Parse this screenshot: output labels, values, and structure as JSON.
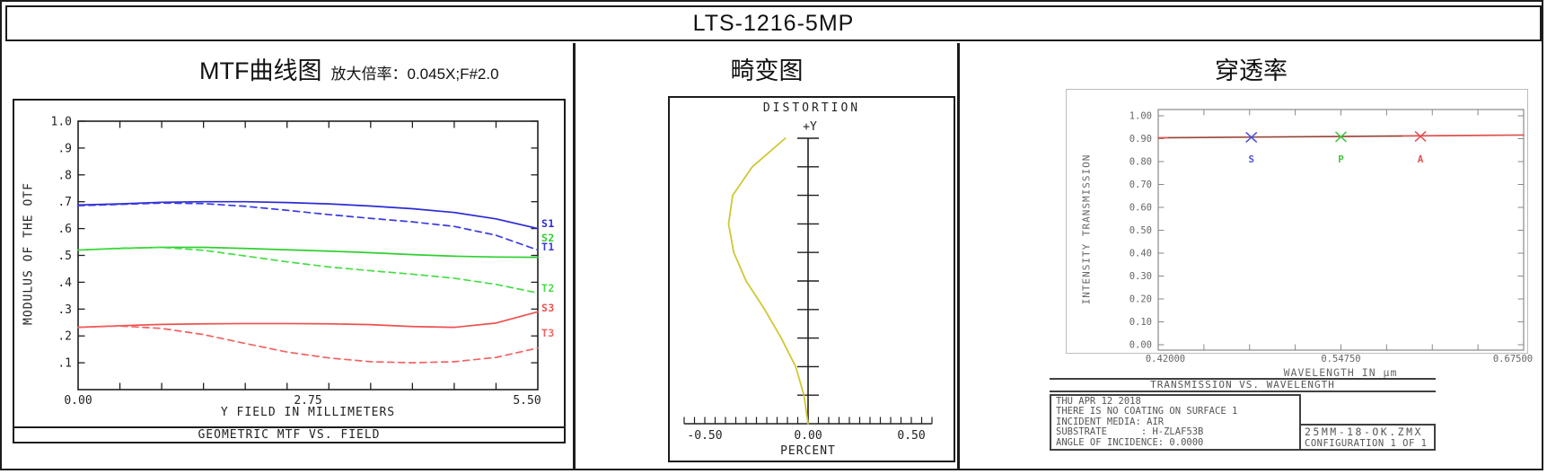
{
  "header": {
    "title": "LTS-1216-5MP"
  },
  "panels": {
    "mtf": {
      "title": "MTF曲线图",
      "subtitle": "放大倍率：0.045X;F#2.0"
    },
    "distortion": {
      "title": "畸变图"
    },
    "transmission": {
      "title": "穿透率",
      "info_lines": [
        "THU APR 12 2018",
        "THERE IS NO COATING ON SURFACE 1",
        "INCIDENT MEDIA: AIR",
        "SUBSTRATE      : H-ZLAF53B",
        "ANGLE OF INCIDENCE: 0.0000"
      ],
      "file_lines": [
        "25MM-18-OK.ZMX",
        "CONFIGURATION 1 OF 1"
      ]
    }
  },
  "chart_data": [
    {
      "type": "line",
      "name": "geometric-mtf",
      "title": "GEOMETRIC MTF VS. FIELD",
      "xlabel": "Y FIELD IN MILLIMETERS",
      "ylabel": "MODULUS OF THE OTF",
      "xlim": [
        0,
        5.5
      ],
      "ylim": [
        0,
        1.0
      ],
      "grid": false,
      "x": [
        0,
        0.5,
        1,
        1.5,
        2,
        2.5,
        3,
        3.5,
        4,
        4.5,
        5,
        5.5
      ],
      "xticks": [
        {
          "label": "0.00",
          "value": 0
        },
        {
          "label": "2.75",
          "value": 2.75
        },
        {
          "label": "5.50",
          "value": 5.5
        }
      ],
      "yticks": [
        {
          "label": "1.0",
          "value": 1.0
        },
        {
          "label": ".9",
          "value": 0.9
        },
        {
          "label": ".8",
          "value": 0.8
        },
        {
          "label": ".7",
          "value": 0.7
        },
        {
          "label": ".6",
          "value": 0.6
        },
        {
          "label": ".5",
          "value": 0.5
        },
        {
          "label": ".4",
          "value": 0.4
        },
        {
          "label": ".3",
          "value": 0.3
        },
        {
          "label": ".2",
          "value": 0.2
        },
        {
          "label": ".1",
          "value": 0.1
        }
      ],
      "series": [
        {
          "name": "S1",
          "color": "#2b2bd6",
          "dashed": false,
          "values": [
            0.688,
            0.692,
            0.698,
            0.7,
            0.7,
            0.697,
            0.692,
            0.684,
            0.674,
            0.66,
            0.636,
            0.6
          ]
        },
        {
          "name": "T1",
          "color": "#3b3be0",
          "dashed": true,
          "values": [
            0.685,
            0.69,
            0.695,
            0.693,
            0.683,
            0.668,
            0.652,
            0.638,
            0.625,
            0.608,
            0.575,
            0.52
          ]
        },
        {
          "name": "S2",
          "color": "#2fcf2f",
          "dashed": false,
          "values": [
            0.52,
            0.526,
            0.53,
            0.53,
            0.526,
            0.521,
            0.516,
            0.51,
            0.503,
            0.497,
            0.494,
            0.493
          ]
        },
        {
          "name": "T2",
          "color": "#43de43",
          "dashed": true,
          "values": [
            0.52,
            0.527,
            0.53,
            0.519,
            0.498,
            0.476,
            0.457,
            0.443,
            0.43,
            0.415,
            0.392,
            0.36
          ]
        },
        {
          "name": "S3",
          "color": "#ee5050",
          "dashed": false,
          "values": [
            0.232,
            0.238,
            0.243,
            0.245,
            0.246,
            0.246,
            0.245,
            0.242,
            0.235,
            0.232,
            0.248,
            0.29
          ]
        },
        {
          "name": "T3",
          "color": "#f26262",
          "dashed": true,
          "values": [
            0.232,
            0.237,
            0.228,
            0.205,
            0.172,
            0.14,
            0.118,
            0.104,
            0.1,
            0.104,
            0.12,
            0.155
          ]
        }
      ]
    },
    {
      "type": "line",
      "name": "distortion",
      "title": "DISTORTION",
      "annotation": "+Y",
      "xlabel": "PERCENT",
      "xlim": [
        -0.6,
        0.6
      ],
      "field_range": [
        0,
        1
      ],
      "color": "#cfc832",
      "xticks": [
        {
          "label": "-0.50",
          "value": -0.5
        },
        {
          "label": "0.00",
          "value": 0
        },
        {
          "label": "0.50",
          "value": 0.5
        }
      ],
      "field": [
        0,
        0.1,
        0.2,
        0.3,
        0.4,
        0.5,
        0.6,
        0.7,
        0.8,
        0.9,
        1.0
      ],
      "percent": [
        0,
        -0.02,
        -0.06,
        -0.13,
        -0.21,
        -0.3,
        -0.36,
        -0.385,
        -0.365,
        -0.27,
        -0.11
      ]
    },
    {
      "type": "line",
      "name": "transmission",
      "title": "TRANSMISSION VS. WAVELENGTH",
      "xlabel": "WAVELENGTH IN µm",
      "ylabel": "INTENSITY TRANSMISSION",
      "xlim": [
        0.42,
        0.675
      ],
      "ylim": [
        0,
        1.0
      ],
      "xticks": [
        {
          "label": "0.42000",
          "value": 0.42
        },
        {
          "label": "0.54750",
          "value": 0.5475
        },
        {
          "label": "0.67500",
          "value": 0.675
        }
      ],
      "yticks": [
        {
          "label": "1.00",
          "value": 1.0
        },
        {
          "label": "0.90",
          "value": 0.9
        },
        {
          "label": "0.80",
          "value": 0.8
        },
        {
          "label": "0.70",
          "value": 0.7
        },
        {
          "label": "0.60",
          "value": 0.6
        },
        {
          "label": "0.50",
          "value": 0.5
        },
        {
          "label": "0.40",
          "value": 0.4
        },
        {
          "label": "0.30",
          "value": 0.3
        },
        {
          "label": "0.20",
          "value": 0.2
        },
        {
          "label": "0.10",
          "value": 0.1
        },
        {
          "label": "0.00",
          "value": 0.0
        }
      ],
      "line": {
        "color": "#e05050",
        "x": [
          0.42,
          0.675
        ],
        "y": [
          0.904,
          0.916
        ]
      },
      "markers": [
        {
          "label": "S",
          "wavelength": 0.485,
          "value": 0.906,
          "color": "#5050dd"
        },
        {
          "label": "P",
          "wavelength": 0.5475,
          "value": 0.908,
          "color": "#3fc43f"
        },
        {
          "label": "A",
          "wavelength": 0.603,
          "value": 0.91,
          "color": "#e05050"
        }
      ]
    }
  ]
}
